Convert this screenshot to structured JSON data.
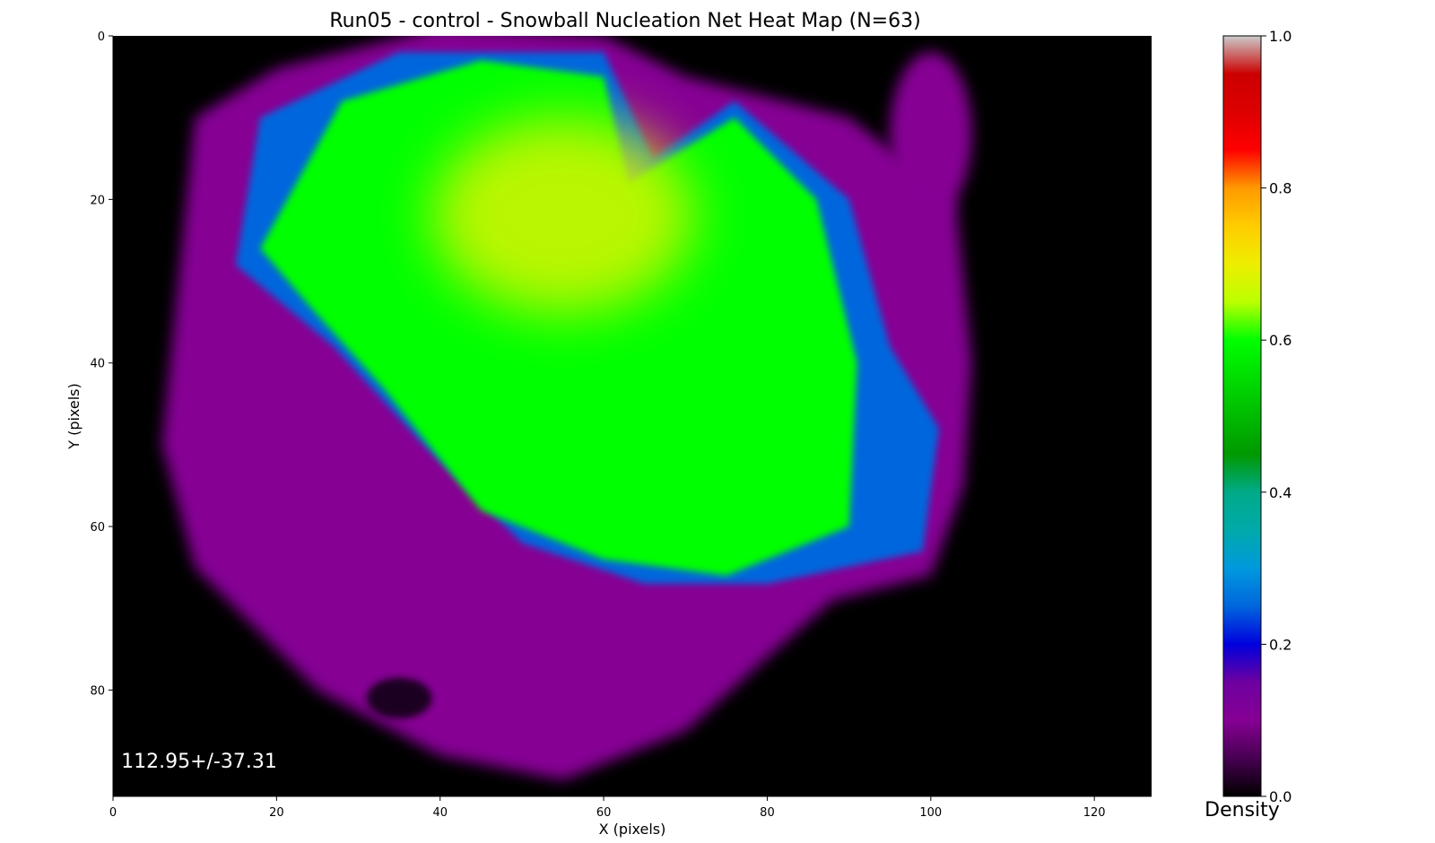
{
  "chart_data": {
    "type": "heatmap",
    "title": "Run05 - control - Snowball Nucleation Net Heat Map (N=63)",
    "xlabel": "X (pixels)",
    "ylabel": "Y (pixels)",
    "xlim": [
      0,
      127
    ],
    "ylim": [
      93,
      0
    ],
    "x_ticks": [
      0,
      20,
      40,
      60,
      80,
      100,
      120
    ],
    "y_ticks": [
      0,
      20,
      40,
      60,
      80
    ],
    "annotation": "112.95+/-37.31",
    "colorbar": {
      "label": "Density",
      "range": [
        0.0,
        1.0
      ],
      "ticks": [
        "0.0",
        "0.2",
        "0.4",
        "0.6",
        "0.8",
        "1.0"
      ],
      "colormap": "nipy_spectral"
    },
    "regions": [
      {
        "name": "core",
        "approx_density": 0.6,
        "polygon": [
          [
            18,
            26
          ],
          [
            28,
            8
          ],
          [
            45,
            3
          ],
          [
            60,
            5
          ],
          [
            63,
            18
          ],
          [
            76,
            10
          ],
          [
            86,
            20
          ],
          [
            91,
            40
          ],
          [
            90,
            60
          ],
          [
            75,
            66
          ],
          [
            60,
            64
          ],
          [
            45,
            58
          ],
          [
            33,
            43
          ],
          [
            24,
            33
          ]
        ]
      },
      {
        "name": "hot-spot",
        "approx_density": 0.68,
        "center": [
          55,
          22
        ],
        "radius": [
          16,
          12
        ]
      },
      {
        "name": "ring",
        "approx_density": 0.25,
        "polygon": [
          [
            15,
            28
          ],
          [
            18,
            10
          ],
          [
            35,
            2
          ],
          [
            60,
            2
          ],
          [
            66,
            15
          ],
          [
            76,
            8
          ],
          [
            90,
            20
          ],
          [
            95,
            38
          ],
          [
            101,
            48
          ],
          [
            99,
            63
          ],
          [
            80,
            67
          ],
          [
            65,
            67
          ],
          [
            50,
            62
          ],
          [
            38,
            50
          ],
          [
            27,
            38
          ]
        ]
      },
      {
        "name": "halo",
        "approx_density": 0.1,
        "polygon": [
          [
            8,
            30
          ],
          [
            10,
            10
          ],
          [
            20,
            4
          ],
          [
            40,
            -1
          ],
          [
            60,
            0
          ],
          [
            70,
            5
          ],
          [
            90,
            10
          ],
          [
            103,
            20
          ],
          [
            105,
            40
          ],
          [
            104,
            55
          ],
          [
            100,
            66
          ],
          [
            88,
            69
          ],
          [
            80,
            76
          ],
          [
            70,
            85
          ],
          [
            55,
            91
          ],
          [
            40,
            88
          ],
          [
            25,
            80
          ],
          [
            10,
            65
          ],
          [
            6,
            50
          ]
        ]
      },
      {
        "name": "right-wisp",
        "approx_density": 0.1,
        "center": [
          100,
          12
        ],
        "radius": [
          5,
          10
        ]
      },
      {
        "name": "dark-pocket",
        "approx_density": 0.02,
        "center": [
          35,
          81
        ],
        "radius": [
          4,
          2.5
        ]
      }
    ]
  }
}
